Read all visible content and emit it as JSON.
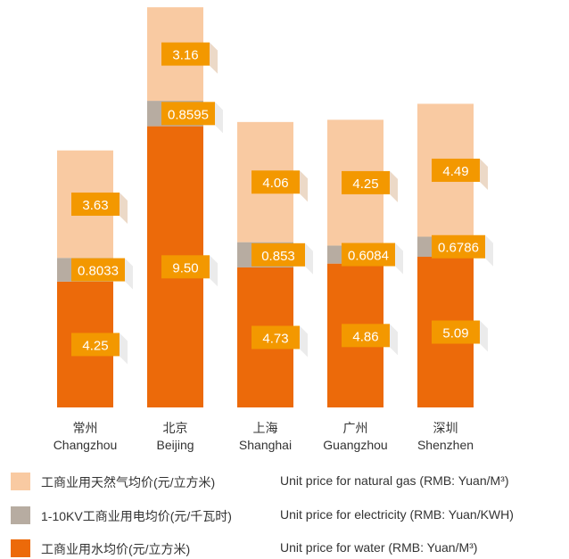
{
  "chart_data": {
    "type": "bar",
    "stacked": true,
    "categories": [
      {
        "zh": "常州",
        "en": "Changzhou"
      },
      {
        "zh": "北京",
        "en": "Beijing"
      },
      {
        "zh": "上海",
        "en": "Shanghai"
      },
      {
        "zh": "广州",
        "en": "Guangzhou"
      },
      {
        "zh": "深圳",
        "en": "Shenzhen"
      }
    ],
    "series": [
      {
        "name_zh": "工商业用水均价(元/立方米)",
        "name_en": "Unit price for water (RMB: Yuan/M³)",
        "color": "#ec6a0a",
        "values": [
          4.25,
          9.5,
          4.73,
          4.86,
          5.09
        ],
        "labels": [
          "4.25",
          "9.50",
          "4.73",
          "4.86",
          "5.09"
        ]
      },
      {
        "name_zh": "1-10KV工商业用电均价(元/千瓦时)",
        "name_en": "Unit price for electricity (RMB: Yuan/KWH)",
        "color": "#b7aca1",
        "values": [
          0.8033,
          0.8595,
          0.853,
          0.6084,
          0.6786
        ],
        "labels": [
          "0.8033",
          "0.8595",
          "0.853",
          "0.6084",
          "0.6786"
        ]
      },
      {
        "name_zh": "工商业用天然气均价(元/立方米)",
        "name_en": "Unit price for natural gas (RMB: Yuan/M³)",
        "color": "#f9caa2",
        "values": [
          3.63,
          3.16,
          4.06,
          4.25,
          4.49
        ],
        "labels": [
          "3.63",
          "3.16",
          "4.06",
          "4.25",
          "4.49"
        ]
      }
    ],
    "label_box_color": "#f39800",
    "legend_placement": "bottom",
    "legend": [
      {
        "zh": "工商业用天然气均价(元/立方米)",
        "en": "Unit price for natural gas (RMB: Yuan/M³)",
        "color": "#f9caa2"
      },
      {
        "zh": "1-10KV工商业用电均价(元/千瓦时)",
        "en": "Unit price for electricity (RMB: Yuan/KWH)",
        "color": "#b7aca1"
      },
      {
        "zh": "工商业用水均价(元/立方米)",
        "en": "Unit price for water (RMB: Yuan/M³)",
        "color": "#ec6a0a"
      }
    ],
    "grid": false,
    "title": "",
    "xlabel": "",
    "ylabel": ""
  }
}
